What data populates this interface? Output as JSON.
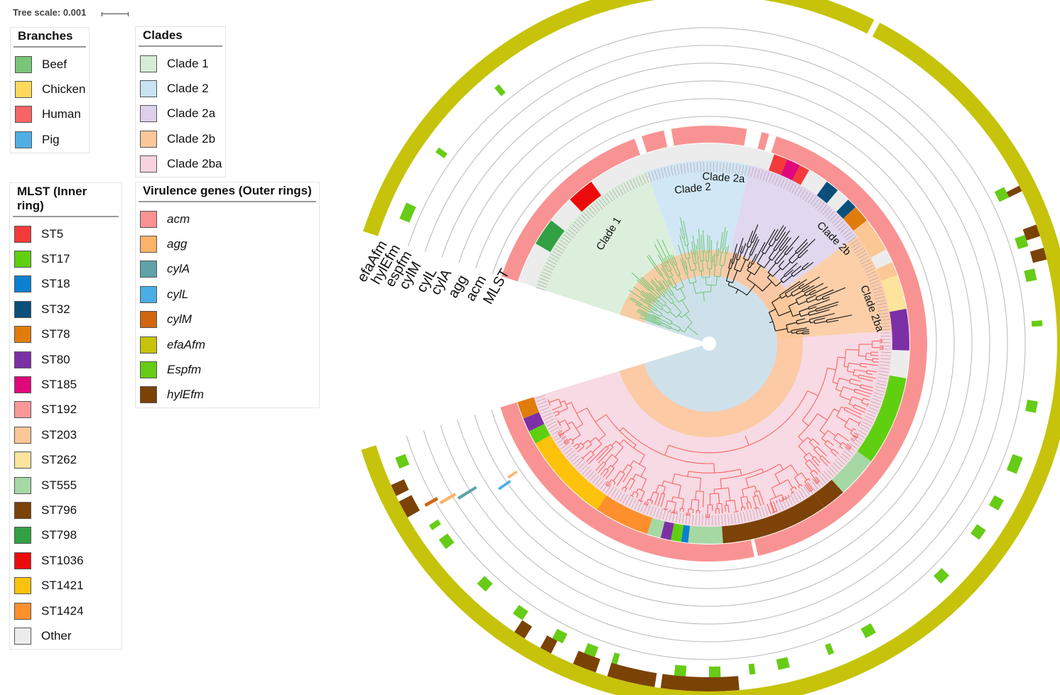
{
  "tree_scale": "Tree scale: 0.001",
  "legends": {
    "branches": {
      "title": "Branches",
      "items": [
        {
          "label": "Beef",
          "color": "#78c679"
        },
        {
          "label": "Chicken",
          "color": "#fed95b"
        },
        {
          "label": "Human",
          "color": "#f86464"
        },
        {
          "label": "Pig",
          "color": "#4faee4"
        }
      ]
    },
    "clades": {
      "title": "Clades",
      "items": [
        {
          "label": "Clade 1",
          "color": "#d5ecd6"
        },
        {
          "label": "Clade 2",
          "color": "#c9e3f3"
        },
        {
          "label": "Clade 2a",
          "color": "#dcd0eb"
        },
        {
          "label": "Clade 2b",
          "color": "#fdc79a"
        },
        {
          "label": "Clade 2ba",
          "color": "#f6d3df"
        }
      ]
    },
    "mlst": {
      "title": "MLST (Inner ring)",
      "items": [
        {
          "label": "ST5",
          "color": "#f33b3b"
        },
        {
          "label": "ST17",
          "color": "#5fd010"
        },
        {
          "label": "ST18",
          "color": "#0a81d0"
        },
        {
          "label": "ST32",
          "color": "#0b4f7b"
        },
        {
          "label": "ST78",
          "color": "#e07c0c"
        },
        {
          "label": "ST80",
          "color": "#7d2fa6"
        },
        {
          "label": "ST185",
          "color": "#e0087a"
        },
        {
          "label": "ST192",
          "color": "#fa9898"
        },
        {
          "label": "ST203",
          "color": "#fbc795"
        },
        {
          "label": "ST262",
          "color": "#fde49c"
        },
        {
          "label": "ST555",
          "color": "#a6d8a4"
        },
        {
          "label": "ST796",
          "color": "#7c4207"
        },
        {
          "label": "ST798",
          "color": "#33a044"
        },
        {
          "label": "ST1036",
          "color": "#ec0b0b"
        },
        {
          "label": "ST1421",
          "color": "#fdc20b"
        },
        {
          "label": "ST1424",
          "color": "#fd8f2c"
        },
        {
          "label": "Other",
          "color": "#ececec"
        }
      ]
    },
    "virulence": {
      "title": "Virulence genes (Outer rings)",
      "items": [
        {
          "label": "acm",
          "color": "#f99393"
        },
        {
          "label": "agg",
          "color": "#fbb36b"
        },
        {
          "label": "cylA",
          "color": "#5ea3a8"
        },
        {
          "label": "cylL",
          "color": "#49aee3"
        },
        {
          "label": "cylM",
          "color": "#d0660e"
        },
        {
          "label": "efaAfm",
          "color": "#c6c30a"
        },
        {
          "label": "Espfm",
          "color": "#66cc15"
        },
        {
          "label": "hylEfm",
          "color": "#7b4206"
        }
      ]
    }
  },
  "ring_labels": [
    "efaAfm",
    "hylEfm",
    "espfm",
    "cylM",
    "cylL",
    "cylA",
    "agg",
    "acm",
    "MLST"
  ],
  "clade_labels": [
    "Clade 1",
    "Clade 2",
    "Clade 2a",
    "Clade 2b",
    "Clade 2ba"
  ]
}
